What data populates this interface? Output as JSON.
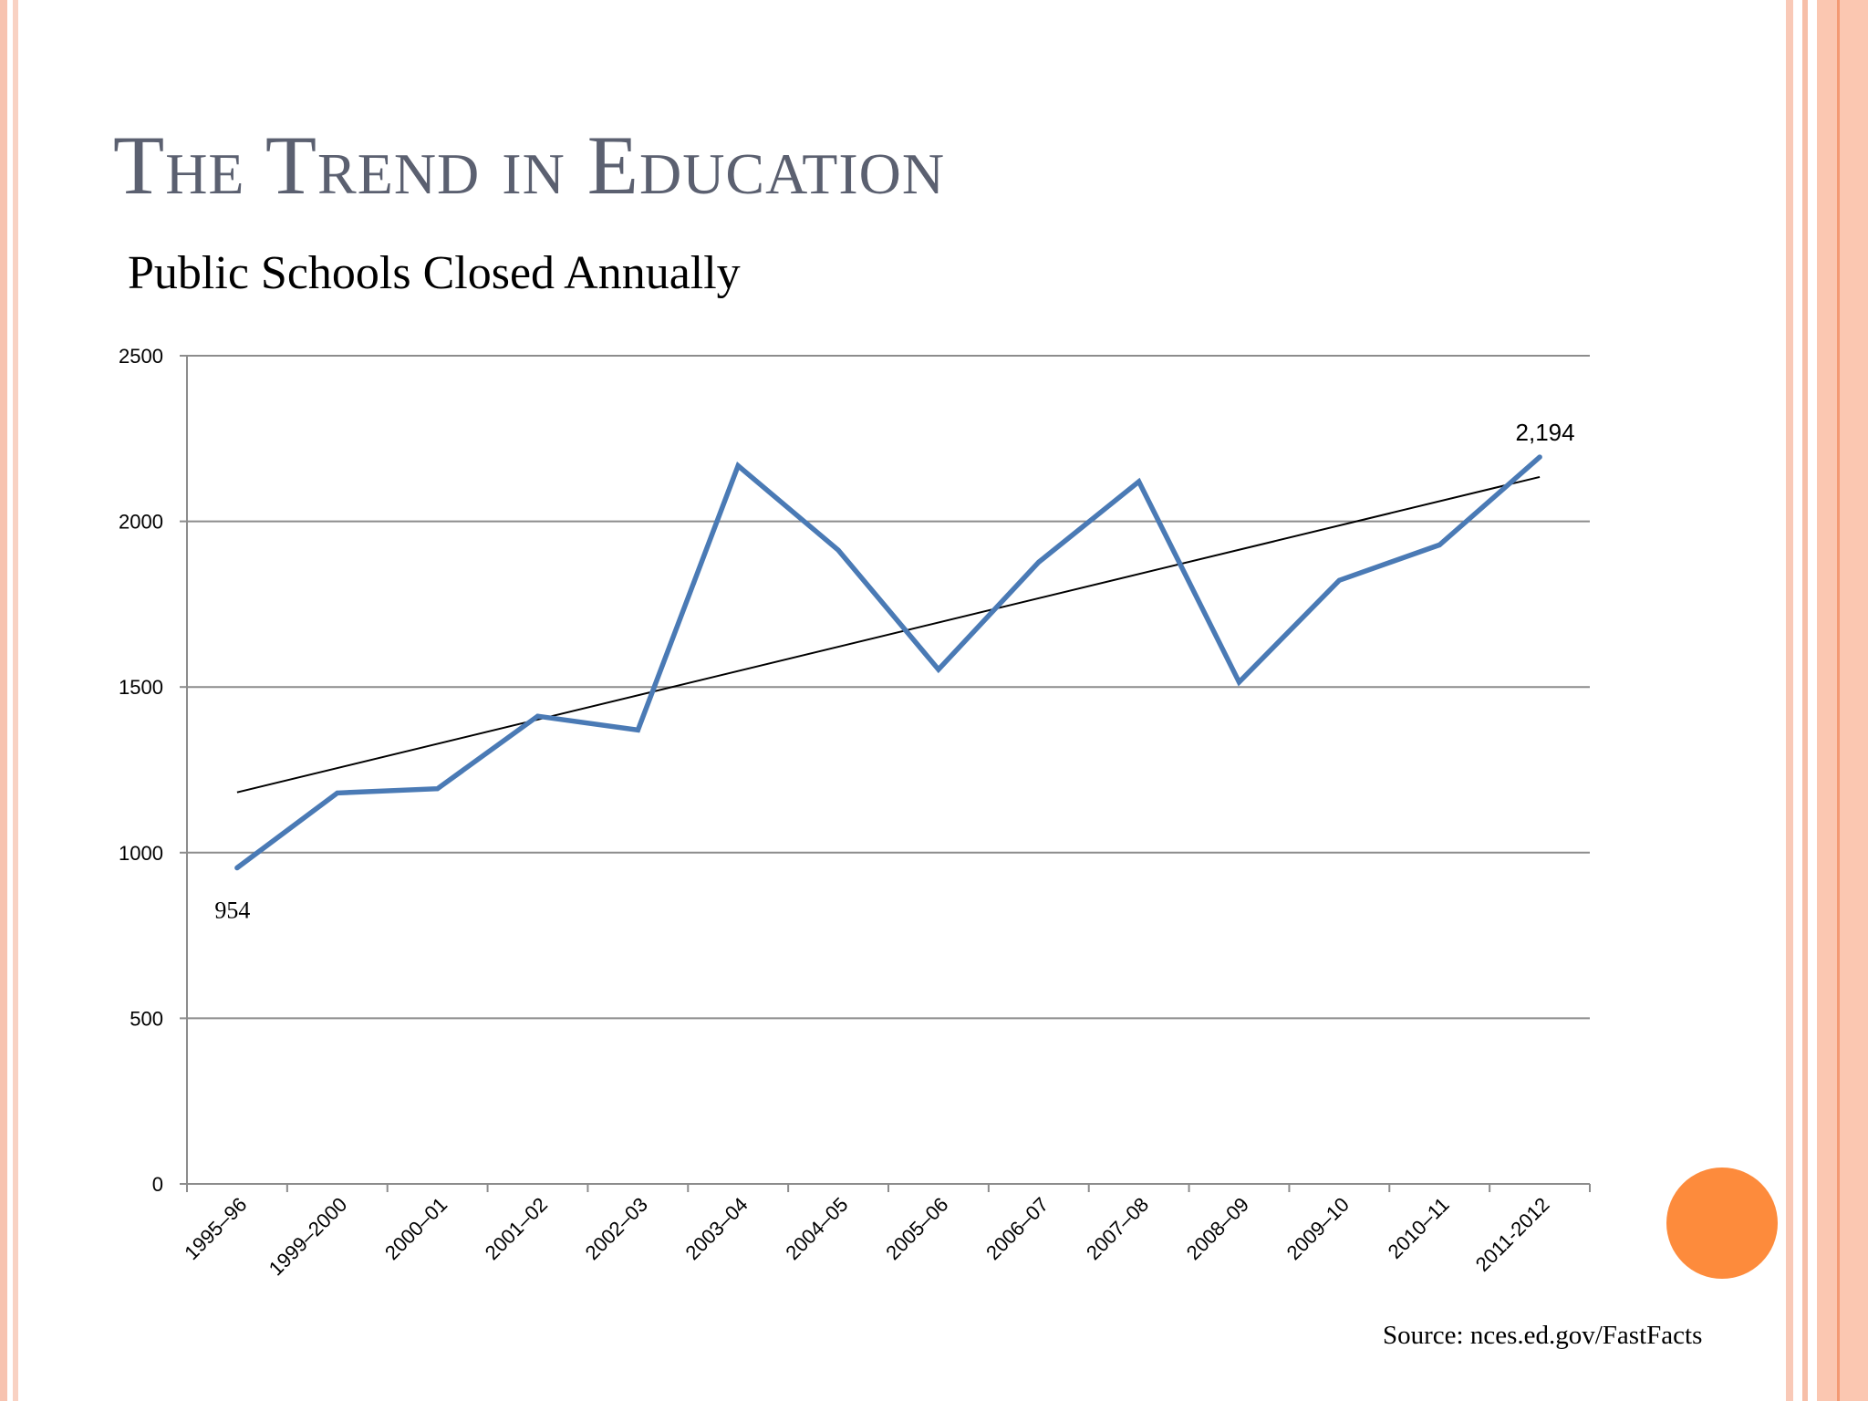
{
  "slide": {
    "title": "The Trend in Education",
    "subtitle": "Public Schools Closed Annually",
    "source": "Source: nces.ed.gov/FastFacts"
  },
  "colors": {
    "series": "#4a7ab5",
    "trendline": "#000000",
    "accent_circle": "#fd8b3c",
    "title": "#5b6070"
  },
  "chart_data": {
    "type": "line",
    "title": "Public Schools Closed Annually",
    "xlabel": "",
    "ylabel": "",
    "ylim": [
      0,
      2500
    ],
    "yticks": [
      0,
      500,
      1000,
      1500,
      2000,
      2500
    ],
    "grid": true,
    "legend": "none",
    "categories": [
      "1995–96",
      "1999–2000",
      "2000–01",
      "2001–02",
      "2002–03",
      "2003–04",
      "2004–05",
      "2005–06",
      "2006–07",
      "2007–08",
      "2008–09",
      "2009–10",
      "2010–11",
      "2011-2012"
    ],
    "series": [
      {
        "values": [
          954,
          1180,
          1193,
          1412,
          1370,
          2168,
          1913,
          1553,
          1877,
          2120,
          1515,
          1822,
          1929,
          2194
        ]
      }
    ],
    "trendline": {
      "type": "linear",
      "start": 1182,
      "end": 2134
    },
    "data_labels": [
      {
        "index": 0,
        "text": "954"
      },
      {
        "index": 13,
        "text": "2,194"
      }
    ]
  }
}
